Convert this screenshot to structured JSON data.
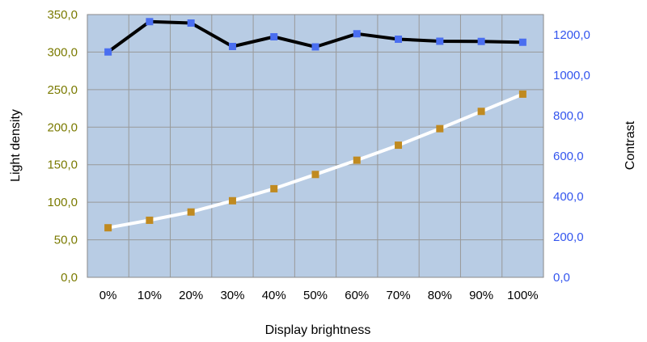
{
  "chart_data": {
    "type": "line",
    "categories": [
      "0%",
      "10%",
      "20%",
      "30%",
      "40%",
      "50%",
      "60%",
      "70%",
      "80%",
      "90%",
      "100%"
    ],
    "xlabel": "Display brightness",
    "ylabel_left": "Light density",
    "ylabel_right": "Contrast",
    "ylim_left": [
      0,
      350
    ],
    "ylim_right": [
      0,
      1300
    ],
    "yticks_left": [
      "0,0",
      "50,0",
      "100,0",
      "150,0",
      "200,0",
      "250,0",
      "300,0",
      "350,0"
    ],
    "yticks_right": [
      "0,0",
      "200,0",
      "400,0",
      "600,0",
      "800,0",
      "1000,0",
      "1200,0"
    ],
    "grid": true,
    "plot_background": "#b8cce4",
    "series": [
      {
        "axis": "right",
        "line_color": "#000000",
        "marker_color": "#4a6ef0",
        "values": [
          1115,
          1265,
          1258,
          1142,
          1190,
          1140,
          1205,
          1178,
          1168,
          1167,
          1163
        ]
      },
      {
        "axis": "left",
        "line_color": "#ffffff",
        "marker_color": "#c08a20",
        "values": [
          66,
          76,
          87,
          102,
          118,
          137,
          156,
          176,
          198,
          221,
          244
        ]
      }
    ]
  }
}
